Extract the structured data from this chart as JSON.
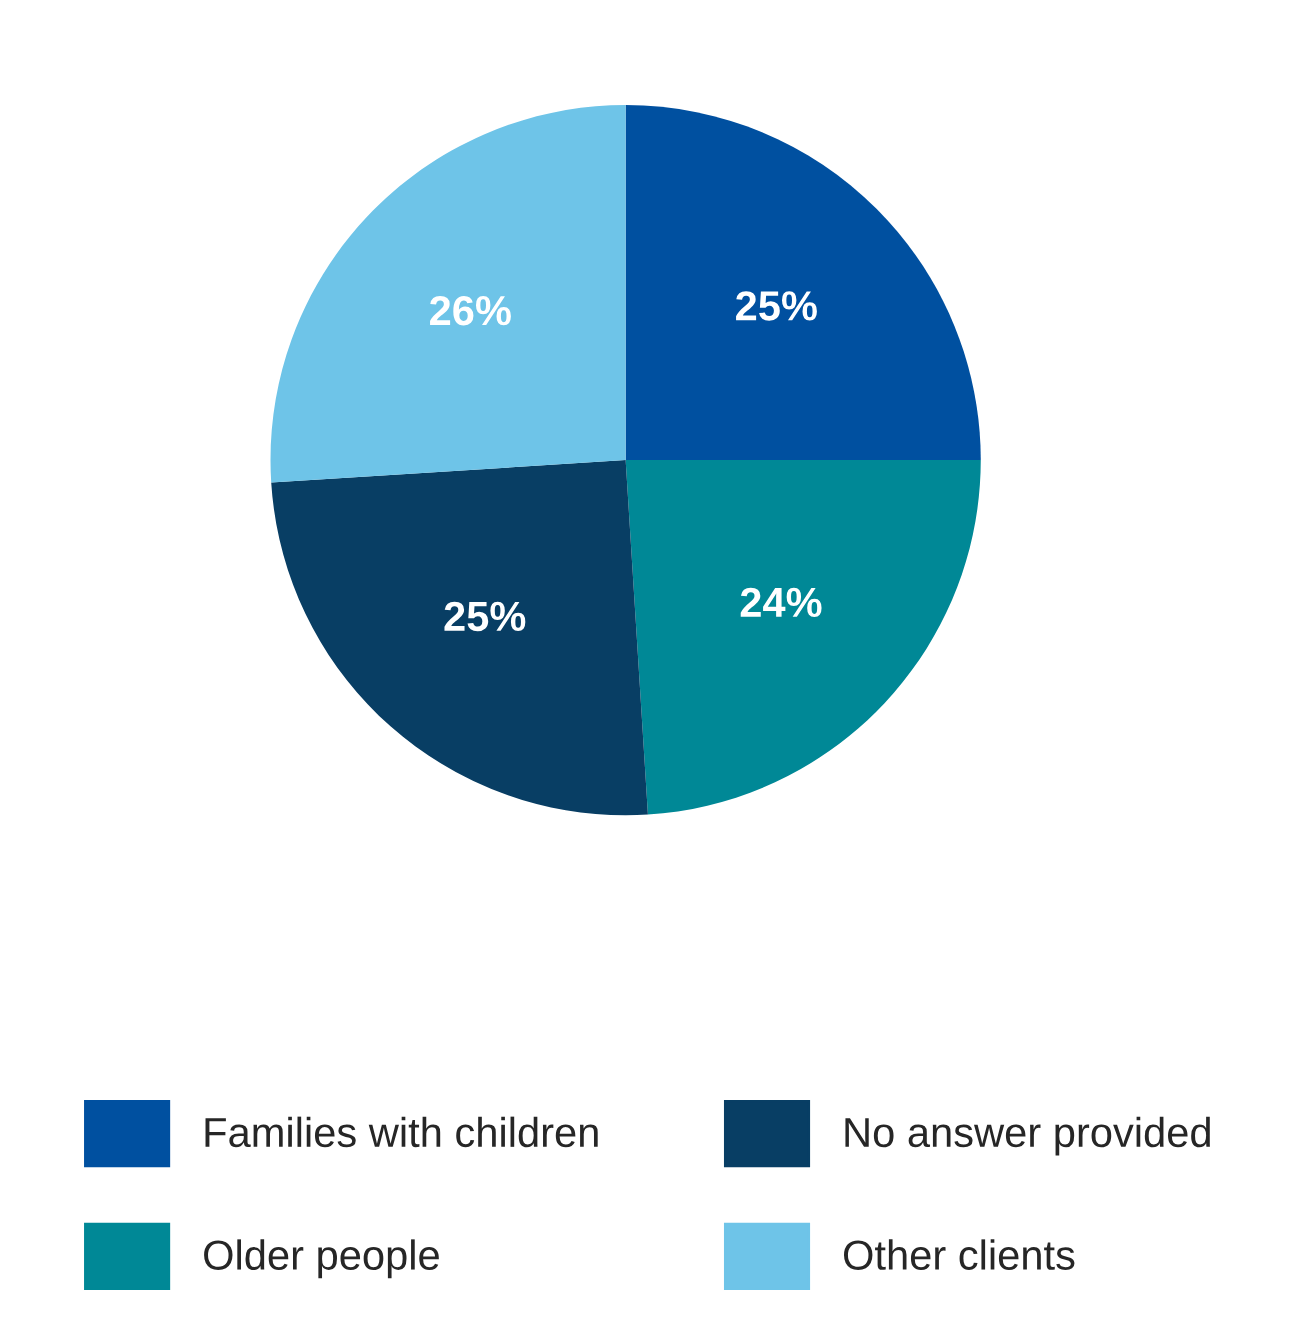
{
  "chart_data": {
    "type": "pie",
    "categories": [
      "Families with children",
      "Older people",
      "No answer provided",
      "Other clients"
    ],
    "values": [
      25,
      24,
      25,
      26
    ],
    "colors": [
      "#0050a0",
      "#008896",
      "#083e64",
      "#6ec4e8"
    ],
    "value_labels": [
      "25%",
      "24%",
      "25%",
      "26%"
    ],
    "legend": "bottom"
  }
}
